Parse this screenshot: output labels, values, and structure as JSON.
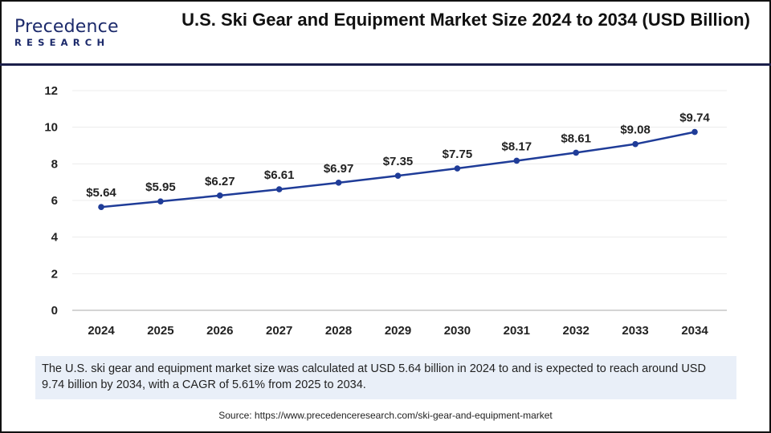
{
  "logo": {
    "line1": "Precedence",
    "line2": "RESEARCH"
  },
  "title": "U.S. Ski Gear and Equipment Market Size 2024 to 2034 (USD Billion)",
  "chart_data": {
    "type": "line",
    "title": "U.S. Ski Gear and Equipment Market Size 2024 to 2034 (USD Billion)",
    "categories": [
      "2024",
      "2025",
      "2026",
      "2027",
      "2028",
      "2029",
      "2030",
      "2031",
      "2032",
      "2033",
      "2034"
    ],
    "values": [
      5.64,
      5.95,
      6.27,
      6.61,
      6.97,
      7.35,
      7.75,
      8.17,
      8.61,
      9.08,
      9.74
    ],
    "data_labels": [
      "$5.64",
      "$5.95",
      "$6.27",
      "$6.61",
      "$6.97",
      "$7.35",
      "$7.75",
      "$8.17",
      "$8.61",
      "$9.08",
      "$9.74"
    ],
    "yticks": [
      "0",
      "2",
      "4",
      "6",
      "8",
      "10",
      "12"
    ],
    "ylim": [
      0,
      12
    ],
    "grid": true,
    "xlabel": "",
    "ylabel": "",
    "line_color": "#1f3c98"
  },
  "summary": "The U.S. ski gear and equipment market size was calculated at USD 5.64 billion in 2024 to and is expected to reach around USD 9.74 billion by 2034, with a CAGR of 5.61% from 2025 to 2034.",
  "source": "Source: https://www.precedenceresearch.com/ski-gear-and-equipment-market"
}
